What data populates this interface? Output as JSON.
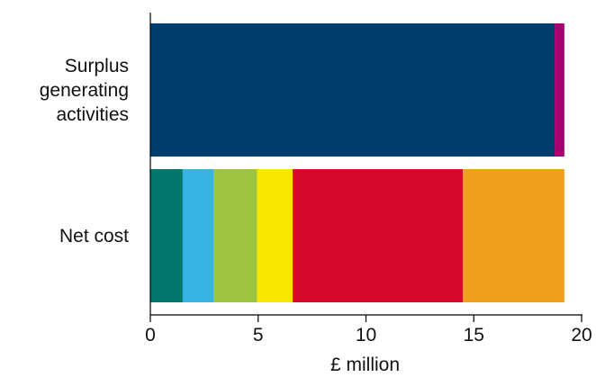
{
  "chart_data": {
    "type": "bar",
    "orientation": "horizontal",
    "stacked": true,
    "title": "",
    "xlabel": "£ million",
    "ylabel": "",
    "xlim": [
      0,
      20
    ],
    "xticks": [
      0,
      5,
      10,
      15,
      20
    ],
    "grid": false,
    "categories": [
      {
        "name": "surplus",
        "label_lines": [
          "Surplus",
          "generating",
          "activities"
        ]
      },
      {
        "name": "net-cost",
        "label_lines": [
          "Net cost"
        ]
      }
    ],
    "bars": [
      {
        "category": "surplus",
        "segments": [
          {
            "value": 18.75,
            "color": "#003d6b"
          },
          {
            "value": 0.45,
            "color": "#a5006e"
          }
        ]
      },
      {
        "category": "net-cost",
        "segments": [
          {
            "value": 1.5,
            "color": "#00766c"
          },
          {
            "value": 1.45,
            "color": "#36b3e0"
          },
          {
            "value": 2.0,
            "color": "#9dc53f"
          },
          {
            "value": 1.65,
            "color": "#f7e600"
          },
          {
            "value": 7.9,
            "color": "#d7092a"
          },
          {
            "value": 4.7,
            "color": "#f29e1d"
          }
        ]
      }
    ]
  }
}
